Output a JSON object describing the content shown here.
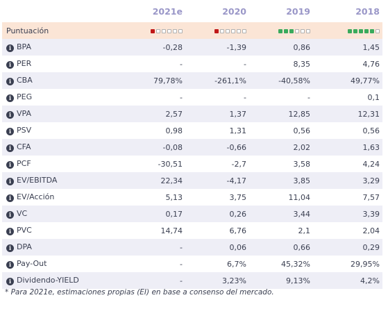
{
  "headers": [
    "2021e",
    "2020",
    "2019",
    "2018"
  ],
  "score": {
    "label": "Puntuación",
    "ratings": [
      {
        "filled": 1,
        "total": 6,
        "color": "#c01818"
      },
      {
        "filled": 1,
        "total": 6,
        "color": "#c01818"
      },
      {
        "filled": 3,
        "total": 6,
        "color": "#3aaa5c"
      },
      {
        "filled": 5,
        "total": 6,
        "color": "#3aaa5c"
      }
    ]
  },
  "rows": [
    {
      "label": "BPA",
      "values": [
        "-0,28",
        "-1,39",
        "0,86",
        "1,45"
      ]
    },
    {
      "label": "PER",
      "values": [
        "-",
        "-",
        "8,35",
        "4,76"
      ]
    },
    {
      "label": "CBA",
      "values": [
        "79,78%",
        "-261,1%",
        "-40,58%",
        "49,77%"
      ]
    },
    {
      "label": "PEG",
      "values": [
        "-",
        "-",
        "-",
        "0,1"
      ]
    },
    {
      "label": "VPA",
      "values": [
        "2,57",
        "1,37",
        "12,85",
        "12,31"
      ]
    },
    {
      "label": "PSV",
      "values": [
        "0,98",
        "1,31",
        "0,56",
        "0,56"
      ]
    },
    {
      "label": "CFA",
      "values": [
        "-0,08",
        "-0,66",
        "2,02",
        "1,63"
      ]
    },
    {
      "label": "PCF",
      "values": [
        "-30,51",
        "-2,7",
        "3,58",
        "4,24"
      ]
    },
    {
      "label": "EV/EBITDA",
      "values": [
        "22,34",
        "-4,17",
        "3,85",
        "3,29"
      ]
    },
    {
      "label": "EV/Acción",
      "values": [
        "5,13",
        "3,75",
        "11,04",
        "7,57"
      ]
    },
    {
      "label": "VC",
      "values": [
        "0,17",
        "0,26",
        "3,44",
        "3,39"
      ]
    },
    {
      "label": "PVC",
      "values": [
        "14,74",
        "6,76",
        "2,1",
        "2,04"
      ]
    },
    {
      "label": "DPA",
      "values": [
        "-",
        "0,06",
        "0,66",
        "0,29"
      ]
    },
    {
      "label": "Pay-Out",
      "values": [
        "-",
        "6,7%",
        "45,32%",
        "29,95%"
      ]
    },
    {
      "label": "Dividendo-YIELD",
      "values": [
        "-",
        "3,23%",
        "9,13%",
        "4,2%"
      ]
    }
  ],
  "icons": {
    "info": "info-icon",
    "rating": "rating-squares-icon"
  },
  "footnote": "* Para 2021e, estimaciones propias (EI) en base a consenso del mercado."
}
